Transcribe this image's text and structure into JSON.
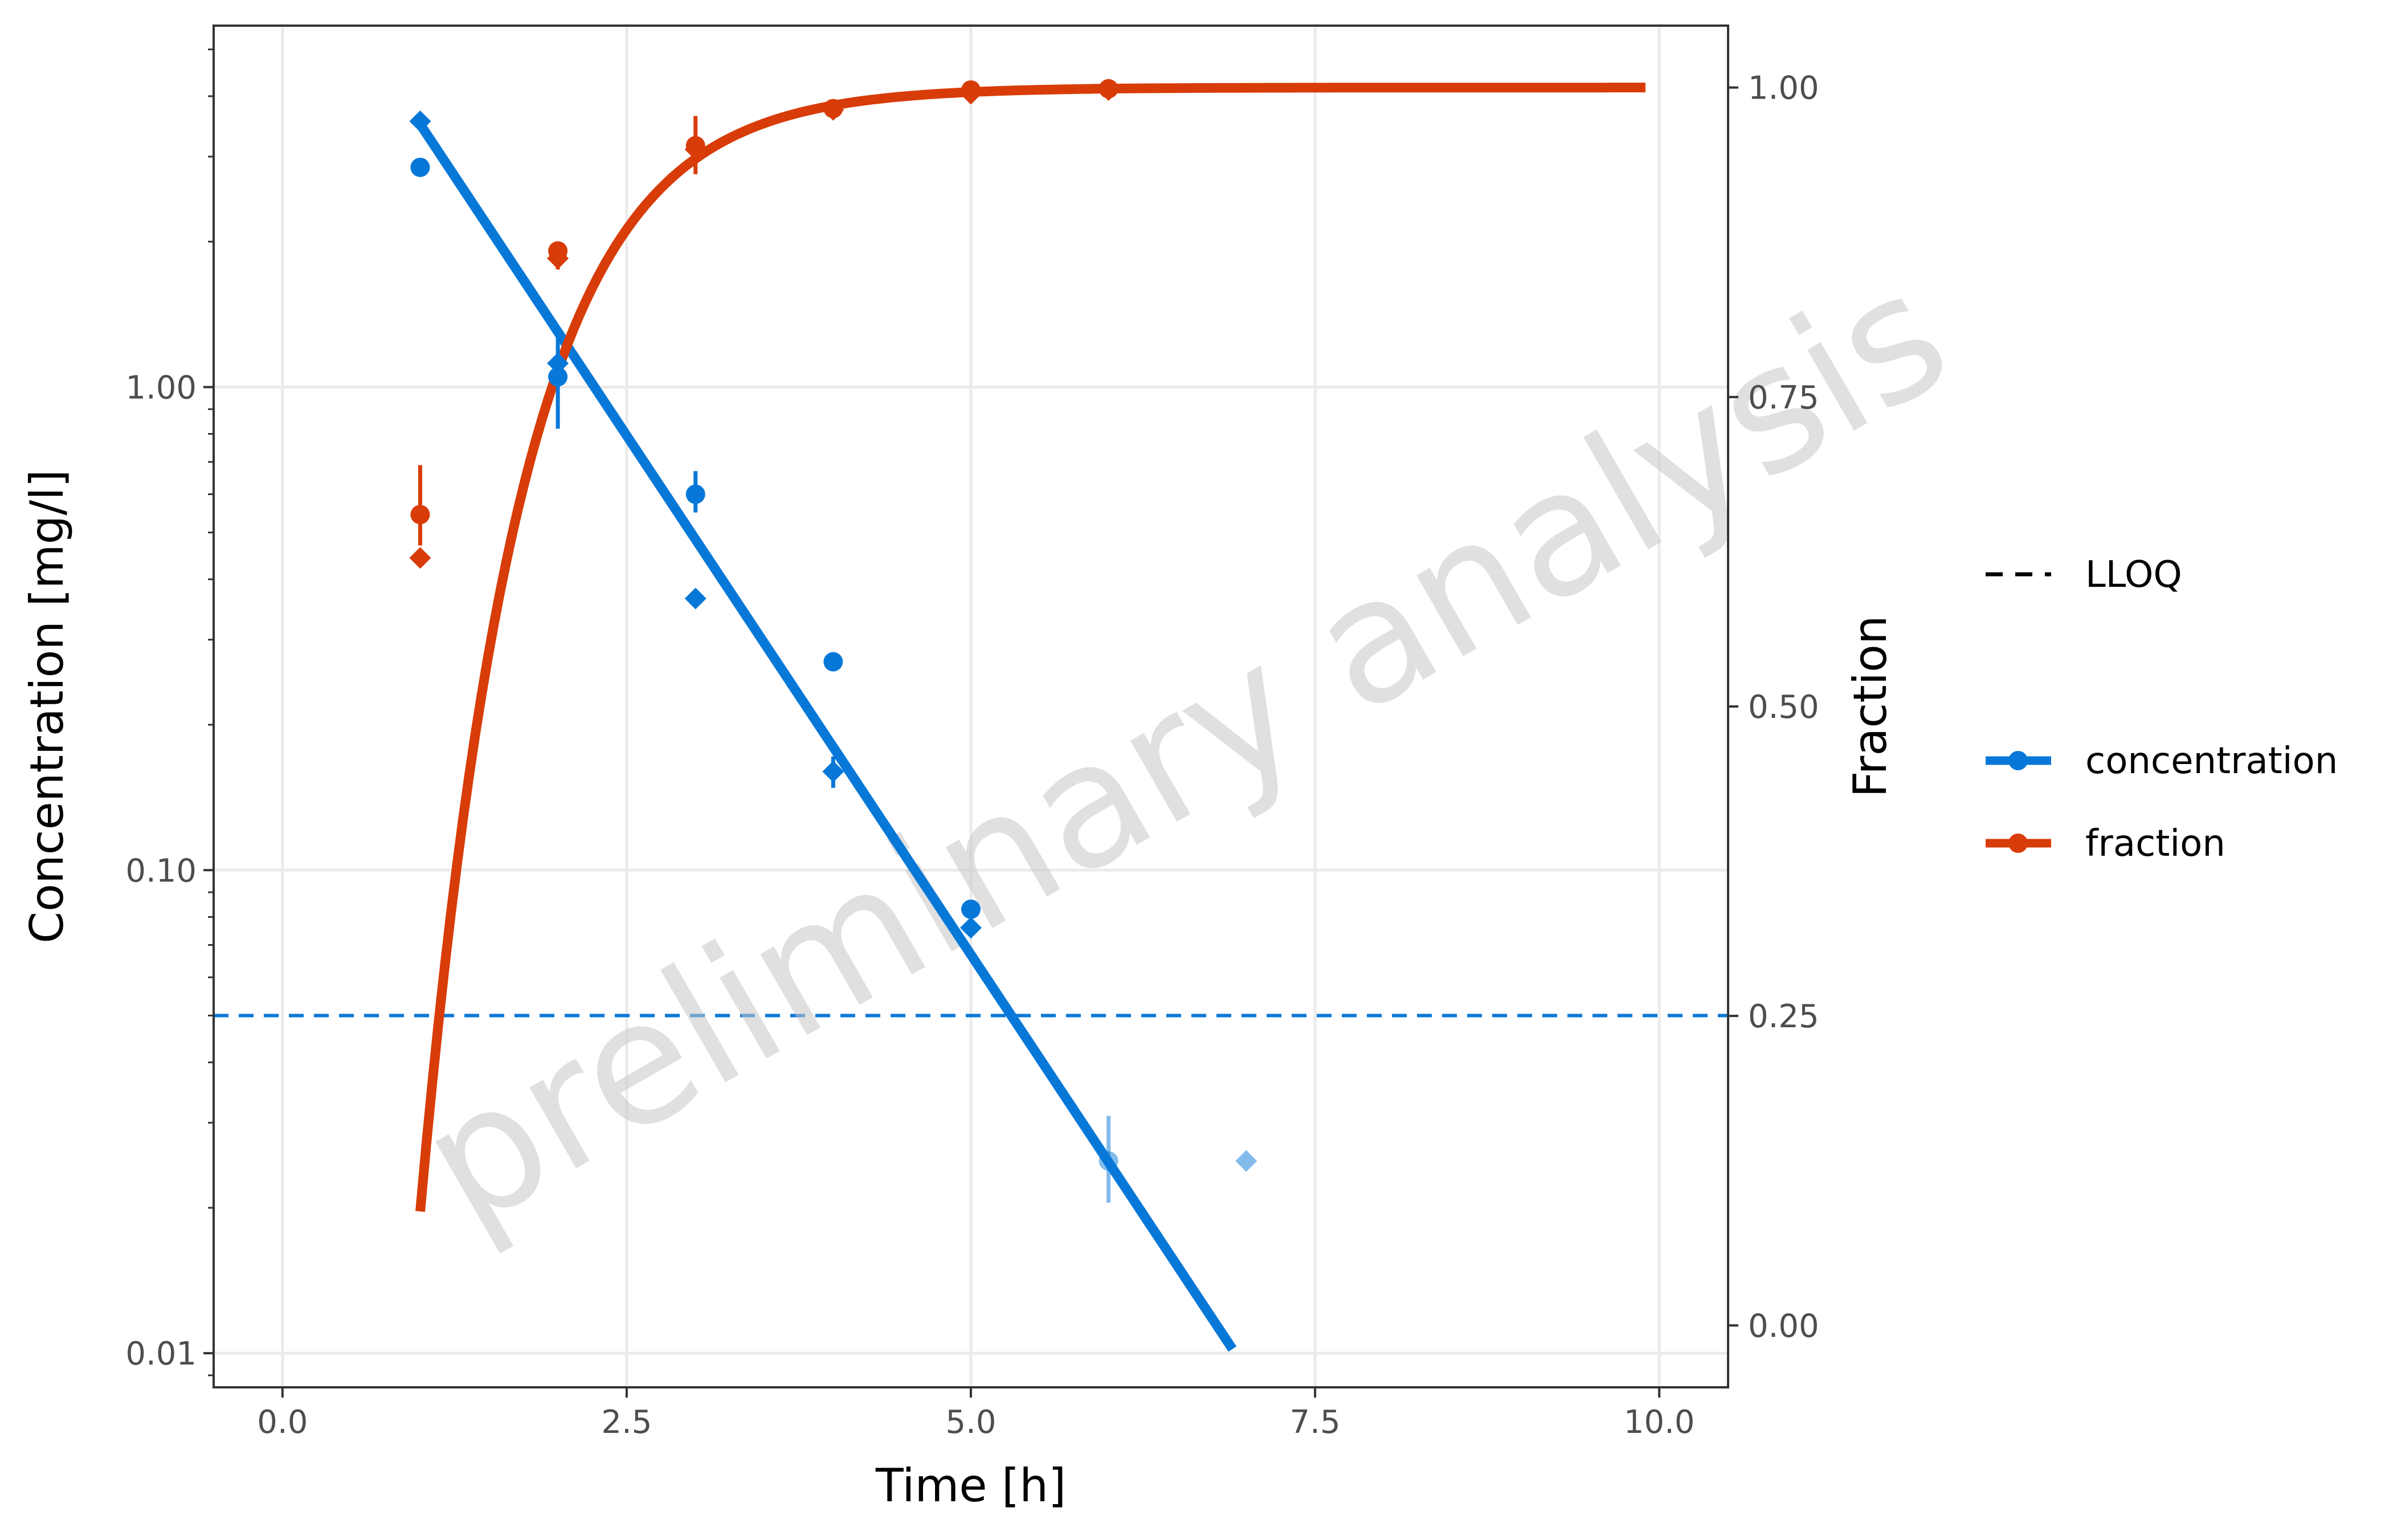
{
  "chart_data": {
    "type": "scatter",
    "xlabel": "Time [h]",
    "ylabel": "Concentration [mg/l]",
    "y2label": "Fraction",
    "xlim": [
      -0.5,
      10.5
    ],
    "x_ticks": [
      0,
      2.5,
      5,
      7.5,
      10
    ],
    "x_tick_labels": [
      "0.0",
      "2.5",
      "5.0",
      "7.5",
      "10.0"
    ],
    "y_scale": "log10",
    "ylim": [
      0.0085,
      5.6
    ],
    "y_ticks": [
      0.01,
      0.1,
      1
    ],
    "y_tick_labels": [
      "0.01",
      "0.10",
      "1.00"
    ],
    "y2lim": [
      -0.05,
      1.05
    ],
    "y2_ticks": [
      0,
      0.25,
      0.5,
      0.75,
      1
    ],
    "y2_tick_labels": [
      "0.00",
      "0.25",
      "0.50",
      "0.75",
      "1.00"
    ],
    "grid": true,
    "legend_position": "right",
    "watermark": "preliminary analysis",
    "colors": {
      "concentration": "#0878d8",
      "fraction": "#d83c08",
      "grid": "#ebebeb",
      "watermark": "#c8c8c8"
    },
    "lloq": {
      "label": "LLOQ",
      "value": 0.05,
      "color": "#0878d8",
      "style": "dashed"
    },
    "legend": [
      {
        "label": "LLOQ",
        "kind": "dashed-line",
        "color": "#000000"
      },
      {
        "label": "concentration",
        "kind": "line-point",
        "color": "#0878d8"
      },
      {
        "label": "fraction",
        "kind": "line-point",
        "color": "#d83c08"
      }
    ],
    "series": [
      {
        "name": "concentration",
        "axis": "left",
        "color": "#0878d8",
        "line": {
          "x": [
            1.0,
            6.9
          ],
          "y": [
            3.5,
            0.0102
          ]
        },
        "points_circle": [
          {
            "x": 1,
            "y": 2.85,
            "err": null,
            "blq": false
          },
          {
            "x": 2,
            "y": 1.05,
            "err": [
              0.82,
              1.3
            ],
            "blq": false
          },
          {
            "x": 3,
            "y": 0.6,
            "err": [
              0.55,
              0.67
            ],
            "blq": false
          },
          {
            "x": 4,
            "y": 0.27,
            "err": null,
            "blq": false
          },
          {
            "x": 5,
            "y": 0.083,
            "err": null,
            "blq": false
          },
          {
            "x": 6,
            "y": 0.025,
            "err": [
              0.0205,
              0.031
            ],
            "blq": true
          }
        ],
        "points_diamond": [
          {
            "x": 1,
            "y": 3.55,
            "err": null,
            "blq": false
          },
          {
            "x": 2,
            "y": 1.12,
            "err": null,
            "blq": false
          },
          {
            "x": 3,
            "y": 0.365,
            "err": null,
            "blq": false
          },
          {
            "x": 4,
            "y": 0.16,
            "err": [
              0.148,
              0.172
            ],
            "blq": false
          },
          {
            "x": 5,
            "y": 0.076,
            "err": null,
            "blq": false
          },
          {
            "x": 7,
            "y": 0.025,
            "err": null,
            "blq": true
          }
        ]
      },
      {
        "name": "fraction",
        "axis": "right",
        "color": "#d83c08",
        "curve": {
          "x_start": 1.0,
          "x_end": 9.9,
          "ymax": 1.0,
          "k": 1.38,
          "x0": 0.93
        },
        "points_circle": [
          {
            "x": 1,
            "y": 0.655,
            "err": [
              0.63,
              0.695
            ]
          },
          {
            "x": 2,
            "y": 0.868,
            "err": [
              0.853,
              0.872
            ]
          },
          {
            "x": 3,
            "y": 0.953,
            "err": [
              0.93,
              0.977
            ]
          },
          {
            "x": 4,
            "y": 0.983,
            "err": null
          },
          {
            "x": 5,
            "y": 0.998,
            "err": null
          },
          {
            "x": 6,
            "y": 0.999,
            "err": null
          }
        ],
        "points_diamond": [
          {
            "x": 1,
            "y": 0.62,
            "err": null
          },
          {
            "x": 2,
            "y": 0.862,
            "err": null
          },
          {
            "x": 3,
            "y": 0.95,
            "err": null
          },
          {
            "x": 4,
            "y": 0.982,
            "err": null
          },
          {
            "x": 5,
            "y": 0.995,
            "err": null
          },
          {
            "x": 6,
            "y": 0.998,
            "err": null
          }
        ]
      }
    ]
  }
}
